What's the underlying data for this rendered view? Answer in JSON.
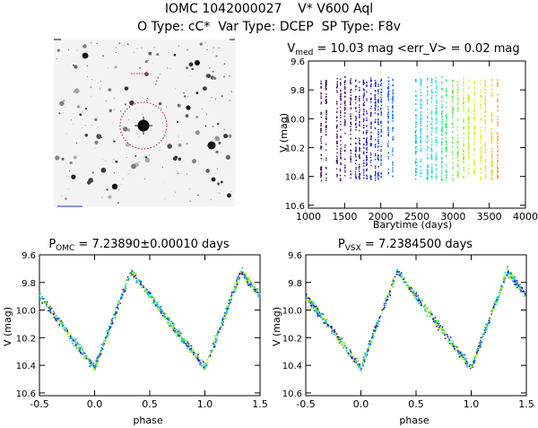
{
  "header": {
    "line1": "IOMC 1042000027    V* V600 Aql",
    "line2": "O Type: cC*  Var Type: DCEP  SP Type: F8v"
  },
  "chart_data": [
    {
      "id": "finder",
      "type": "image",
      "description": "grayscale star field finder chart with target circled"
    },
    {
      "id": "lightcurve",
      "type": "scatter",
      "title_parts": [
        "V",
        "med",
        " = 10.03 mag <err_V> = 0.02 mag"
      ],
      "xlabel": "Barytime (days)",
      "ylabel": "V (mag)",
      "xlim": [
        1000,
        4000
      ],
      "ylim": [
        10.62,
        9.6
      ],
      "xticks": [
        1000,
        1500,
        2000,
        2500,
        3000,
        3500,
        4000
      ],
      "yticks": [
        9.6,
        9.8,
        10.0,
        10.2,
        10.4,
        10.6
      ],
      "segments": [
        {
          "t": 1170,
          "color": "#3a0a4a"
        },
        {
          "t": 1240,
          "color": "#3a0a4a"
        },
        {
          "t": 1390,
          "color": "#3a0a4a"
        },
        {
          "t": 1440,
          "color": "#4a1468"
        },
        {
          "t": 1500,
          "color": "#4a1468"
        },
        {
          "t": 1580,
          "color": "#3c1070"
        },
        {
          "t": 1650,
          "color": "#300f80"
        },
        {
          "t": 1700,
          "color": "#2a1090"
        },
        {
          "t": 1760,
          "color": "#2a10a0"
        },
        {
          "t": 1800,
          "color": "#2810b0"
        },
        {
          "t": 1860,
          "color": "#2010c8"
        },
        {
          "t": 1920,
          "color": "#1a20d8"
        },
        {
          "t": 1960,
          "color": "#1830e0"
        },
        {
          "t": 2000,
          "color": "#1840e8"
        },
        {
          "t": 2100,
          "color": "#1060f0"
        },
        {
          "t": 2160,
          "color": "#0a70ff"
        },
        {
          "t": 2480,
          "color": "#00a8ff"
        },
        {
          "t": 2550,
          "color": "#00c8f0"
        },
        {
          "t": 2640,
          "color": "#00d8e0"
        },
        {
          "t": 2700,
          "color": "#00e0c8"
        },
        {
          "t": 2760,
          "color": "#00e8a8"
        },
        {
          "t": 2840,
          "color": "#00e880"
        },
        {
          "t": 2900,
          "color": "#20e850"
        },
        {
          "t": 2990,
          "color": "#50ea30"
        },
        {
          "t": 3060,
          "color": "#70ee20"
        },
        {
          "t": 3140,
          "color": "#90f018"
        },
        {
          "t": 3210,
          "color": "#b0f010"
        },
        {
          "t": 3290,
          "color": "#d0ee10"
        },
        {
          "t": 3380,
          "color": "#e8e610"
        },
        {
          "t": 3440,
          "color": "#f0d810"
        },
        {
          "t": 3530,
          "color": "#f0c010"
        },
        {
          "t": 3610,
          "color": "#f0a010"
        }
      ]
    },
    {
      "id": "phase_omc",
      "type": "scatter",
      "title_parts": [
        "P",
        "OMC",
        " = 7.23890±0.00010 days"
      ],
      "xlabel": "phase",
      "ylabel": "V (mag)",
      "xlim": [
        -0.5,
        1.5
      ],
      "ylim": [
        10.62,
        9.6
      ],
      "xticks": [
        -0.5,
        0.0,
        0.5,
        1.0,
        1.5
      ],
      "yticks": [
        9.6,
        9.8,
        10.0,
        10.2,
        10.4,
        10.6
      ],
      "curve_min_phase": 0.0,
      "curve_max_phase": 0.33,
      "mag_bright": 9.72,
      "mag_faint": 10.42
    },
    {
      "id": "phase_vsx",
      "type": "scatter",
      "title_parts": [
        "P",
        "VSX",
        " = 7.2384500 days"
      ],
      "xlabel": "phase",
      "ylabel": "V (mag)",
      "xlim": [
        -0.5,
        1.5
      ],
      "ylim": [
        10.62,
        9.6
      ],
      "xticks": [
        -0.5,
        0.0,
        0.5,
        1.0,
        1.5
      ],
      "yticks": [
        9.6,
        9.8,
        10.0,
        10.2,
        10.4,
        10.6
      ],
      "curve_min_phase": 0.0,
      "curve_max_phase": 0.33,
      "mag_bright": 9.72,
      "mag_faint": 10.42
    }
  ]
}
